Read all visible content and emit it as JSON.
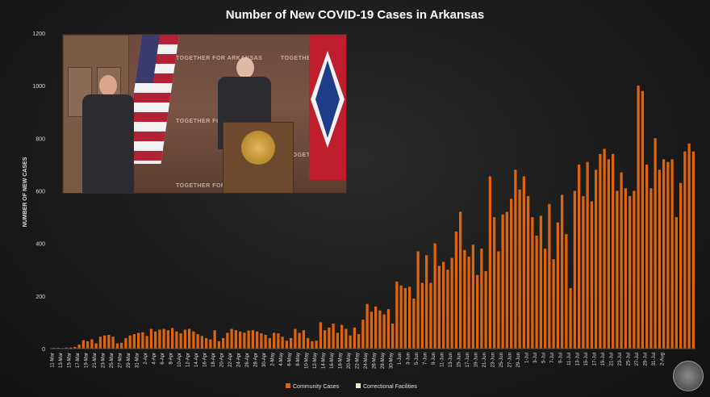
{
  "colors": {
    "community": "#e0640f",
    "correctional": "#f4e6c8",
    "axis_text": "#dcdcdc"
  },
  "chart_data": {
    "type": "bar",
    "stacked": true,
    "title": "Number of New COVID-19 Cases in Arkansas",
    "ylabel": "NUMBER OF NEW CASES",
    "ylim": [
      0,
      1200
    ],
    "yticks": [
      0,
      200,
      400,
      600,
      800,
      1000,
      1200
    ],
    "x_tick_labels": [
      "11-Mar",
      "13-Mar",
      "15-Mar",
      "17-Mar",
      "19-Mar",
      "21-Mar",
      "23-Mar",
      "25-Mar",
      "27-Mar",
      "29-Mar",
      "31-Mar",
      "2-Apr",
      "4-Apr",
      "6-Apr",
      "8-Apr",
      "10-Apr",
      "12-Apr",
      "14-Apr",
      "16-Apr",
      "18-Apr",
      "20-Apr",
      "22-Apr",
      "24-Apr",
      "26-Apr",
      "28-Apr",
      "30-Apr",
      "2-May",
      "4-May",
      "6-May",
      "8-May",
      "10-May",
      "12-May",
      "14-May",
      "16-May",
      "18-May",
      "20-May",
      "22-May",
      "24-May",
      "26-May",
      "28-May",
      "30-May",
      "1-Jun",
      "3-Jun",
      "5-Jun",
      "7-Jun",
      "9-Jun",
      "11-Jun",
      "13-Jun",
      "15-Jun",
      "17-Jun",
      "19-Jun",
      "21-Jun",
      "23-Jun",
      "25-Jun",
      "27-Jun",
      "29-Jun",
      "1-Jul",
      "3-Jul",
      "5-Jul",
      "7-Jul",
      "9-Jul",
      "11-Jul",
      "13-Jul",
      "15-Jul",
      "17-Jul",
      "19-Jul",
      "21-Jul",
      "23-Jul",
      "25-Jul",
      "27-Jul",
      "29-Jul",
      "31-Jul",
      "2-Aug"
    ],
    "series": [
      {
        "name": "Community Cases",
        "values": [
          3,
          3,
          2,
          4,
          4,
          6,
          15,
          32,
          28,
          35,
          20,
          45,
          50,
          52,
          45,
          20,
          22,
          40,
          50,
          55,
          60,
          62,
          48,
          75,
          65,
          72,
          75,
          70,
          78,
          65,
          58,
          72,
          75,
          65,
          55,
          48,
          40,
          35,
          70,
          28,
          40,
          60,
          75,
          70,
          65,
          60,
          68,
          70,
          65,
          58,
          52,
          40,
          60,
          58,
          45,
          30,
          40,
          75,
          60,
          70,
          40,
          28,
          30,
          100,
          70,
          80,
          95,
          60,
          90,
          75,
          50,
          80,
          55,
          110,
          170,
          140,
          160,
          145,
          130,
          150,
          95,
          255,
          240,
          230,
          235,
          190,
          370,
          250,
          355,
          250,
          400,
          315,
          330,
          300,
          345,
          445,
          520,
          375,
          350,
          395,
          280,
          380,
          295,
          655,
          500,
          370,
          510,
          520,
          570,
          680,
          605,
          655,
          580,
          500,
          430,
          505,
          380,
          550,
          340,
          480,
          585,
          435,
          230,
          600,
          700,
          580,
          710,
          560,
          680,
          740,
          760,
          720,
          740,
          600,
          670,
          610,
          580,
          600,
          1000,
          980,
          700,
          610,
          800,
          680,
          720,
          710,
          720,
          500,
          630,
          750,
          780,
          750
        ],
        "note_values": "daily approximations read from bar heights"
      },
      {
        "name": "Correctional Facilities",
        "values": [
          0,
          0,
          0,
          0,
          0,
          0,
          0,
          0,
          0,
          0,
          0,
          0,
          0,
          0,
          0,
          0,
          0,
          0,
          0,
          0,
          0,
          0,
          0,
          0,
          0,
          0,
          0,
          0,
          0,
          0,
          0,
          0,
          0,
          0,
          0,
          0,
          0,
          0,
          0,
          0,
          0,
          0,
          0,
          0,
          0,
          0,
          0,
          0,
          0,
          0,
          0,
          0,
          0,
          0,
          0,
          0,
          0,
          0,
          0,
          0,
          0,
          0,
          0,
          0,
          0,
          0,
          0,
          0,
          0,
          0,
          0,
          0,
          0,
          0,
          0,
          0,
          0,
          0,
          0,
          0,
          0,
          0,
          0,
          0,
          0,
          0,
          0,
          0,
          0,
          0,
          0,
          0,
          0,
          0,
          0,
          0,
          0,
          0,
          0,
          0,
          0,
          0,
          0,
          0,
          0,
          0,
          0,
          0,
          0,
          0,
          0,
          0,
          0,
          0,
          0,
          0,
          0,
          0,
          0,
          0,
          0,
          0,
          0,
          0,
          0,
          0,
          0,
          0,
          0,
          0,
          0,
          0,
          0,
          0,
          0,
          0,
          0,
          0,
          0,
          0,
          0,
          0,
          0,
          0,
          0,
          0,
          0,
          0,
          0,
          0,
          0,
          0
        ]
      }
    ],
    "legend": [
      "Community Cases",
      "Correctional Facilities"
    ],
    "legend_position": "bottom-center"
  },
  "video": {
    "banner_text": "TOGETHER FOR ARKANSAS"
  }
}
